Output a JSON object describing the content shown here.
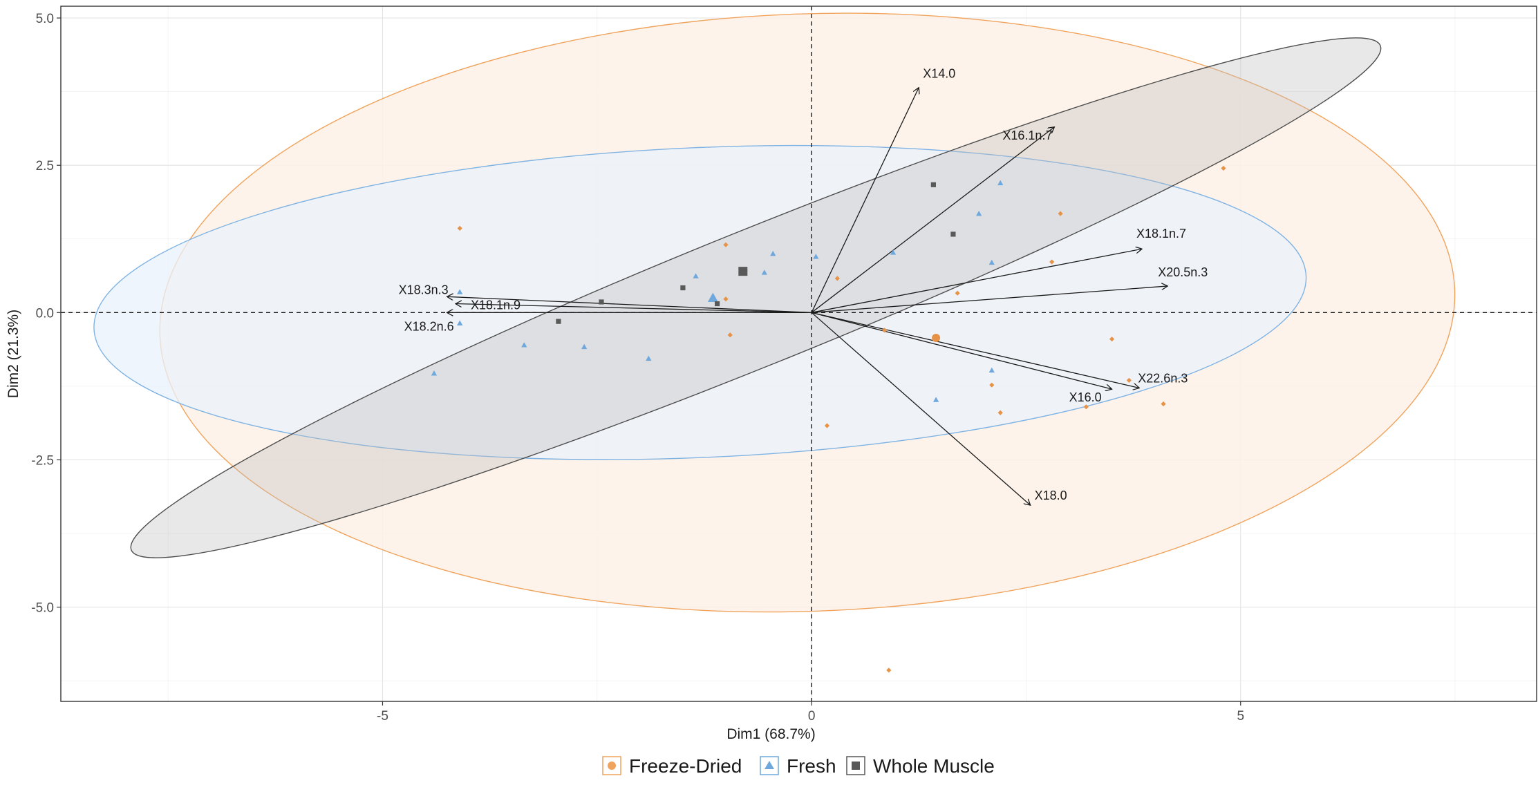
{
  "chart_data": {
    "type": "scatter",
    "subtype": "pca-biplot",
    "title": "",
    "xlabel": "Dim1 (68.7%)",
    "ylabel": "Dim2 (21.3%)",
    "xlim": [
      -8.75,
      8.45
    ],
    "ylim": [
      -6.6,
      5.2
    ],
    "x_ticks": [
      -5,
      0,
      5
    ],
    "y_ticks": [
      -5,
      -2.5,
      0,
      2.5,
      5
    ],
    "x_tick_labels": [
      "-5",
      "0",
      "5"
    ],
    "y_tick_labels": [
      "-5.0",
      "-2.5",
      "0.0",
      "2.5",
      "5.0"
    ],
    "grid": true,
    "reference_lines": {
      "x": 0,
      "y": 0,
      "style": "dashed"
    },
    "legend": {
      "position": "bottom",
      "entries": [
        {
          "label": "Freeze-Dried",
          "shape": "circle",
          "color": "#f0a35c"
        },
        {
          "label": "Fresh",
          "shape": "triangle",
          "color": "#6fa8dc"
        },
        {
          "label": "Whole Muscle",
          "shape": "square",
          "color": "#595959"
        }
      ]
    },
    "series": [
      {
        "name": "Freeze-Dried",
        "shape": "circle",
        "color": "#e69348",
        "points": [
          [
            -4.1,
            1.43
          ],
          [
            -1.0,
            1.15
          ],
          [
            -1.0,
            0.23
          ],
          [
            -0.95,
            -0.38
          ],
          [
            0.3,
            0.58
          ],
          [
            0.18,
            -1.92
          ],
          [
            0.85,
            -0.3
          ],
          [
            0.9,
            -6.07
          ],
          [
            1.7,
            0.33
          ],
          [
            2.1,
            -1.23
          ],
          [
            2.2,
            -1.7
          ],
          [
            2.8,
            0.86
          ],
          [
            2.9,
            1.68
          ],
          [
            3.2,
            -1.6
          ],
          [
            3.5,
            -0.45
          ],
          [
            3.7,
            -1.15
          ],
          [
            4.1,
            -1.55
          ],
          [
            4.8,
            2.45
          ]
        ],
        "centroid": [
          1.45,
          -0.43
        ],
        "ellipse": {
          "cx": -0.05,
          "cy": 0.0,
          "rx": 7.55,
          "ry": 5.07,
          "angle_deg": 2.0
        }
      },
      {
        "name": "Fresh",
        "shape": "triangle",
        "color": "#6fa8dc",
        "points": [
          [
            -4.1,
            0.35
          ],
          [
            -4.1,
            -0.18
          ],
          [
            -4.4,
            -1.03
          ],
          [
            -3.35,
            -0.55
          ],
          [
            -2.65,
            -0.58
          ],
          [
            -1.9,
            -0.78
          ],
          [
            -1.35,
            0.62
          ],
          [
            -0.55,
            0.68
          ],
          [
            -0.45,
            1.0
          ],
          [
            0.05,
            0.95
          ],
          [
            0.95,
            1.02
          ],
          [
            1.45,
            -1.48
          ],
          [
            1.95,
            1.68
          ],
          [
            2.1,
            0.85
          ],
          [
            2.1,
            -0.98
          ],
          [
            2.2,
            2.2
          ]
        ],
        "centroid": [
          -1.15,
          0.25
        ],
        "ellipse": {
          "cx": -1.3,
          "cy": 0.17,
          "rx": 7.07,
          "ry": 2.63,
          "angle_deg": 2.5
        }
      },
      {
        "name": "Whole Muscle",
        "shape": "square",
        "color": "#595959",
        "points": [
          [
            -2.45,
            0.18
          ],
          [
            -2.95,
            -0.15
          ],
          [
            -1.5,
            0.42
          ],
          [
            -1.1,
            0.15
          ],
          [
            1.42,
            2.17
          ],
          [
            1.65,
            1.33
          ]
        ],
        "centroid": [
          -0.8,
          0.7
        ],
        "ellipse": {
          "cx": -0.65,
          "cy": 0.25,
          "rx": 7.85,
          "ry": 1.15,
          "angle_deg": 22.0
        }
      }
    ],
    "variables": [
      {
        "label": "X14.0",
        "x": 1.25,
        "y": 3.82
      },
      {
        "label": "X16.1n.7",
        "x": 2.83,
        "y": 3.15
      },
      {
        "label": "X18.1n.7",
        "x": 3.85,
        "y": 1.08
      },
      {
        "label": "X20.5n.3",
        "x": 4.15,
        "y": 0.45
      },
      {
        "label": "X22.6n.3",
        "x": 3.82,
        "y": -1.28
      },
      {
        "label": "X16.0",
        "x": 3.5,
        "y": -1.3
      },
      {
        "label": "X18.0",
        "x": 2.55,
        "y": -3.27
      },
      {
        "label": "X18.3n.3",
        "x": -4.25,
        "y": 0.27
      },
      {
        "label": "X18.1n.9",
        "x": -4.15,
        "y": 0.15
      },
      {
        "label": "X18.2n.6",
        "x": -4.25,
        "y": 0.0
      }
    ]
  }
}
